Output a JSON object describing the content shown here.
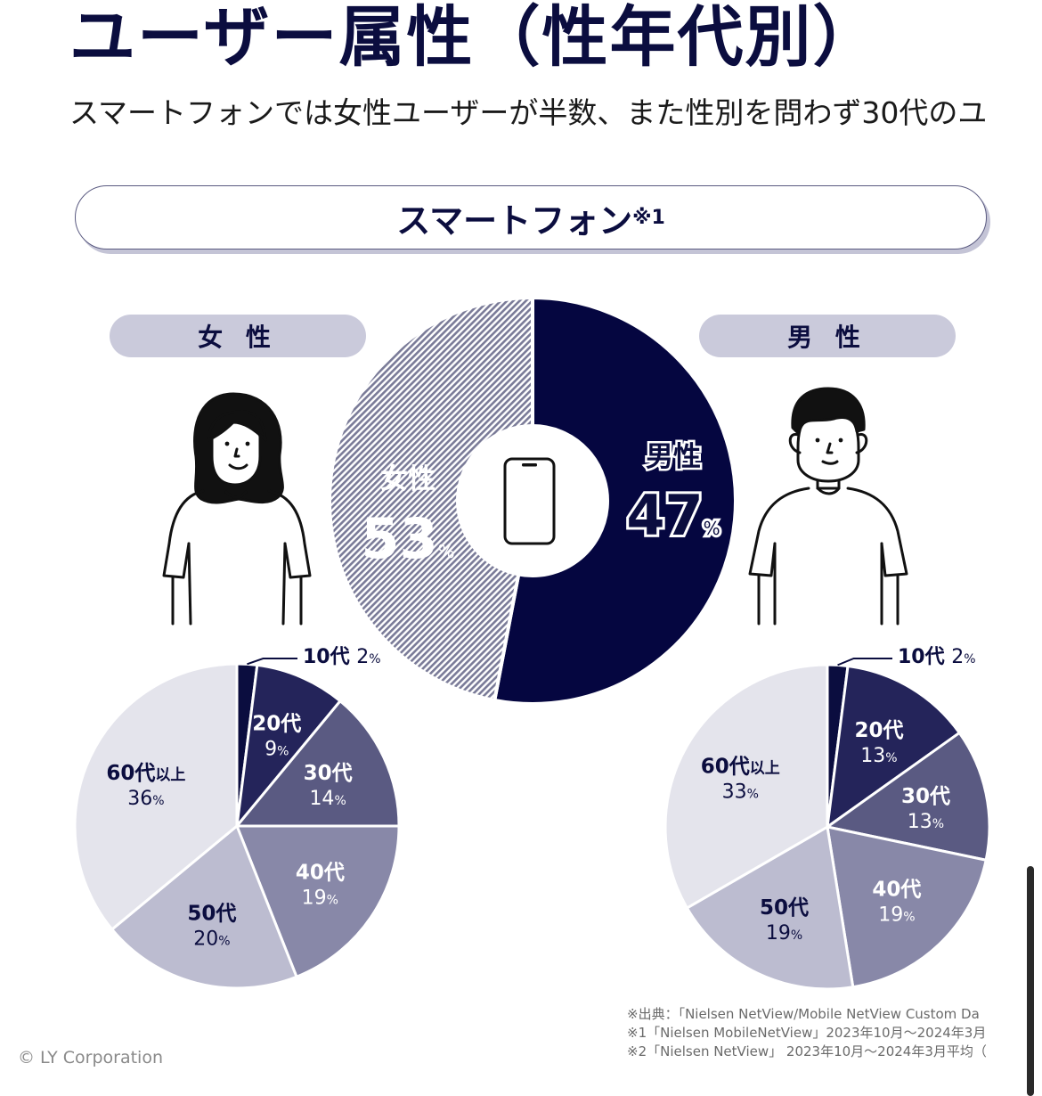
{
  "header": {
    "title": "ユーザー属性（性年代別）",
    "subtitle": "スマートフォンでは女性ユーザーが半数、また性別を問わず30代のユ"
  },
  "banner": {
    "label": "スマートフォン",
    "note_mark": "※1"
  },
  "labels": {
    "female_pill": "女 性",
    "male_pill": "男 性"
  },
  "icons": {
    "female": "woman-illustration-icon",
    "male": "man-illustration-icon",
    "center": "smartphone-icon"
  },
  "chart_data": [
    {
      "type": "pie",
      "name": "gender",
      "categories": [
        "女性",
        "男性"
      ],
      "values": [
        53,
        47
      ],
      "unit": "%",
      "colors": [
        "#050640",
        "#8b8ca6"
      ]
    },
    {
      "type": "pie",
      "name": "female-age",
      "categories": [
        "10代",
        "20代",
        "30代",
        "40代",
        "50代",
        "60代以上"
      ],
      "values": [
        2,
        9,
        14,
        19,
        20,
        36
      ],
      "unit": "%",
      "colors": [
        "#0b0d3f",
        "#24245a",
        "#5a5a82",
        "#8888a8",
        "#bcbcd0",
        "#e4e4ec"
      ]
    },
    {
      "type": "pie",
      "name": "male-age",
      "categories": [
        "10代",
        "20代",
        "30代",
        "40代",
        "50代",
        "60代以上"
      ],
      "values": [
        2,
        13,
        13,
        19,
        19,
        33
      ],
      "unit": "%",
      "colors": [
        "#0b0d3f",
        "#24245a",
        "#5a5a82",
        "#8888a8",
        "#bcbcd0",
        "#e4e4ec"
      ]
    }
  ],
  "footnotes": [
    "※出典：「Nielsen NetView/Mobile NetView Custom Da",
    "※1「Nielsen MobileNetView」2023年10月〜2024年3月",
    "※2「Nielsen NetView」 2023年10月〜2024年3月平均（"
  ],
  "footer": {
    "copyright": "© LY Corporation"
  }
}
